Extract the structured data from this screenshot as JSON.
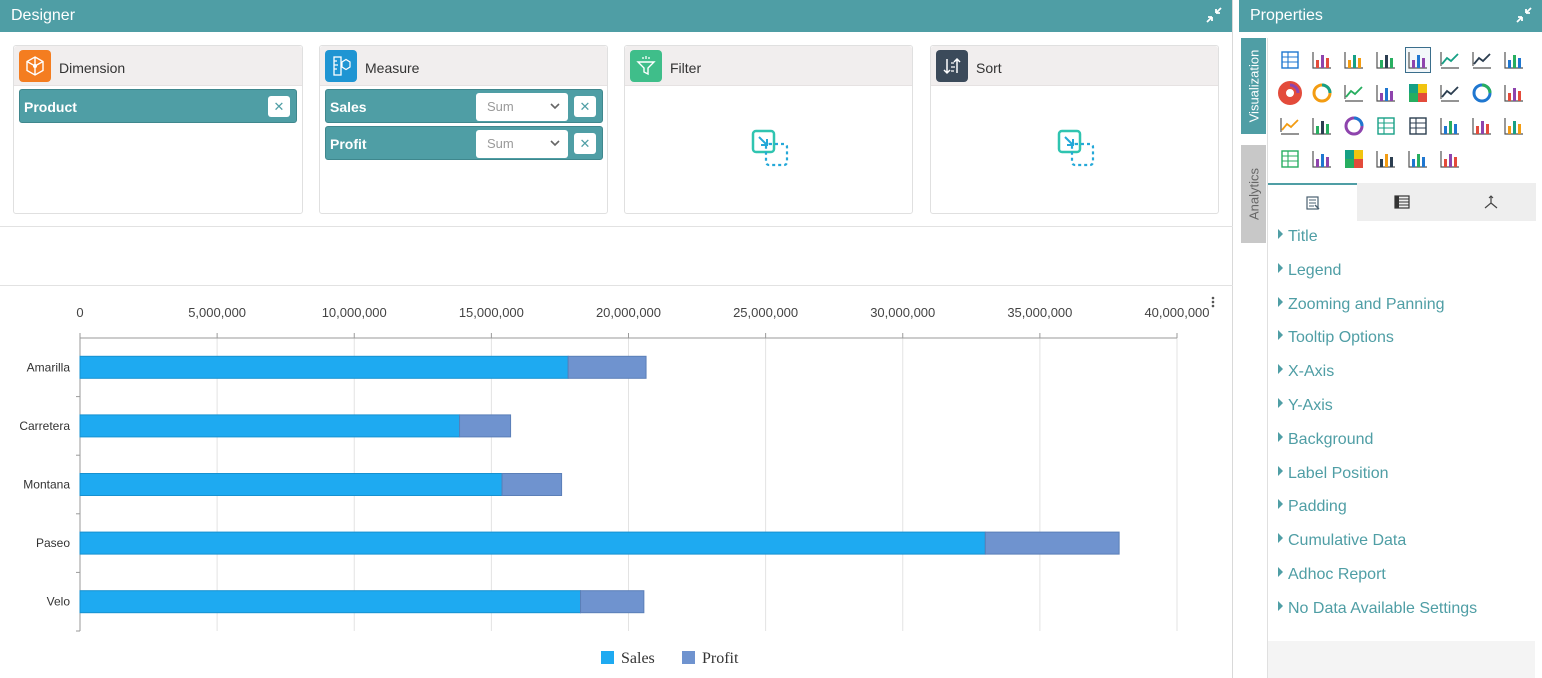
{
  "designer": {
    "title": "Designer",
    "cards": {
      "dimension": {
        "title": "Dimension",
        "items": [
          {
            "label": "Product"
          }
        ]
      },
      "measure": {
        "title": "Measure",
        "items": [
          {
            "label": "Sales",
            "aggregate": "Sum"
          },
          {
            "label": "Profit",
            "aggregate": "Sum"
          }
        ]
      },
      "filter": {
        "title": "Filter"
      },
      "sort": {
        "title": "Sort"
      }
    },
    "close_glyph": "✕"
  },
  "chart_data": {
    "type": "bar",
    "orientation": "horizontal",
    "stacked": true,
    "categories": [
      "Amarilla",
      "Carretera",
      "Montana",
      "Paseo",
      "Velo"
    ],
    "series": [
      {
        "name": "Sales",
        "color": "#1eaaf1",
        "values": [
          17800000,
          13840000,
          15390000,
          33010000,
          18250000
        ]
      },
      {
        "name": "Profit",
        "color": "#6f93cf",
        "values": [
          2840000,
          1860000,
          2170000,
          4880000,
          2310000
        ]
      }
    ],
    "xlim": [
      0,
      40000000
    ],
    "xticks": [
      "0",
      "5,000,000",
      "10,000,000",
      "15,000,000",
      "20,000,000",
      "25,000,000",
      "30,000,000",
      "35,000,000",
      "40,000,000"
    ],
    "x_axis_position": "top",
    "grid": true,
    "legend": "bottom-center",
    "title": "",
    "xlabel": "",
    "ylabel": ""
  },
  "properties": {
    "title": "Properties",
    "side_tabs": [
      "Visualization",
      "Analytics"
    ],
    "viz_icons": [
      "grid-icon",
      "combo-chart-icon",
      "column-chart-icon",
      "area-chart-icon",
      "bar-chart-icon",
      "line-area-chart-icon",
      "spline-chart-icon",
      "funnel-chart-icon",
      "pie-chart-icon",
      "donut-chart-icon",
      "step-chart-icon",
      "radar-chart-icon",
      "treemap-icon",
      "curve-chart-icon",
      "gauge-icon",
      "thermometer-icon",
      "stacked-line-icon",
      "polar-chart-icon",
      "ring-chart-icon",
      "table-icon",
      "kpi-card-icon",
      "image-chart-icon",
      "candlestick-icon",
      "map-icon",
      "pivot-icon",
      "stream-chart-icon",
      "heatmap-icon",
      "sankey-icon",
      "bubble-chart-icon",
      "histogram-icon"
    ],
    "sub_tabs": [
      "properties-tab-icon",
      "columns-tab-icon",
      "axis-tab-icon"
    ],
    "items": [
      "Title",
      "Legend",
      "Zooming and Panning",
      "Tooltip Options",
      "X-Axis",
      "Y-Axis",
      "Background",
      "Label Position",
      "Padding",
      "Cumulative Data",
      "Adhoc Report",
      "No Data Available Settings"
    ]
  },
  "colors": {
    "accent": "#4f9ea5",
    "sales": "#1eaaf1",
    "profit": "#6f93cf"
  }
}
